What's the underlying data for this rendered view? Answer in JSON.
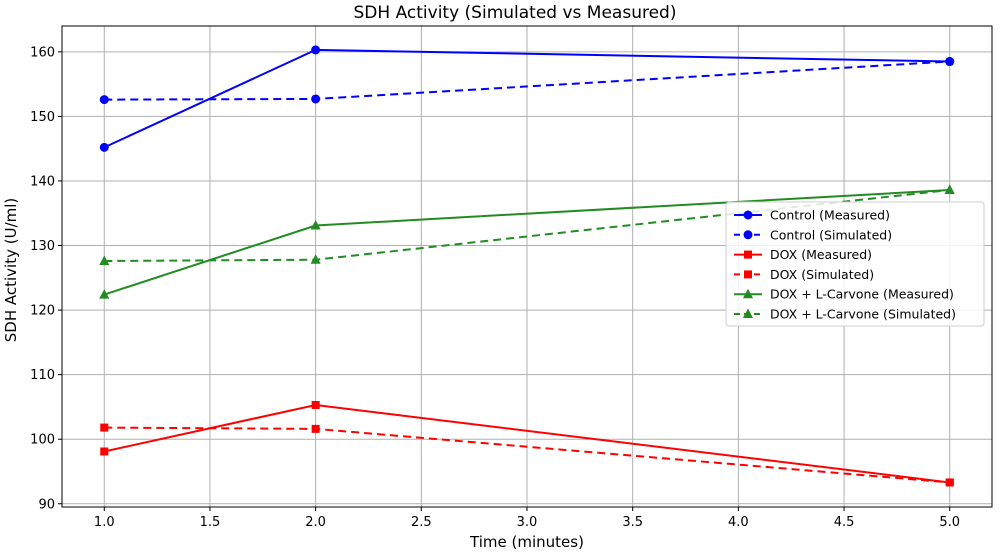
{
  "chart_data": {
    "type": "line",
    "title": "SDH Activity (Simulated vs Measured)",
    "xlabel": "Time (minutes)",
    "ylabel": "SDH Activity (U/ml)",
    "xlim": [
      0.8,
      5.2
    ],
    "ylim": [
      89.5,
      164
    ],
    "xticks": [
      1.0,
      1.5,
      2.0,
      2.5,
      3.0,
      3.5,
      4.0,
      4.5,
      5.0
    ],
    "xtick_labels": [
      "1.0",
      "1.5",
      "2.0",
      "2.5",
      "3.0",
      "3.5",
      "4.0",
      "4.5",
      "5.0"
    ],
    "yticks": [
      90,
      100,
      110,
      120,
      130,
      140,
      150,
      160
    ],
    "ytick_labels": [
      "90",
      "100",
      "110",
      "120",
      "130",
      "140",
      "150",
      "160"
    ],
    "grid": true,
    "legend_position": "center-right",
    "x": [
      1.0,
      2.0,
      5.0
    ],
    "series": [
      {
        "name": "Control (Measured)",
        "values": [
          145.2,
          160.3,
          158.5
        ],
        "color": "#0000ff",
        "style": "solid",
        "marker": "circle"
      },
      {
        "name": "Control (Simulated)",
        "values": [
          152.6,
          152.7,
          158.5
        ],
        "color": "#0000ff",
        "style": "dashed",
        "marker": "circle"
      },
      {
        "name": "DOX (Measured)",
        "values": [
          98.1,
          105.3,
          93.3
        ],
        "color": "#ff0000",
        "style": "solid",
        "marker": "square"
      },
      {
        "name": "DOX (Simulated)",
        "values": [
          101.8,
          101.6,
          93.3
        ],
        "color": "#ff0000",
        "style": "dashed",
        "marker": "square"
      },
      {
        "name": "DOX + L-Carvone (Measured)",
        "values": [
          122.4,
          133.1,
          138.6
        ],
        "color": "#228b22",
        "style": "solid",
        "marker": "triangle"
      },
      {
        "name": "DOX + L-Carvone (Simulated)",
        "values": [
          127.6,
          127.8,
          138.6
        ],
        "color": "#228b22",
        "style": "dashed",
        "marker": "triangle"
      }
    ]
  }
}
